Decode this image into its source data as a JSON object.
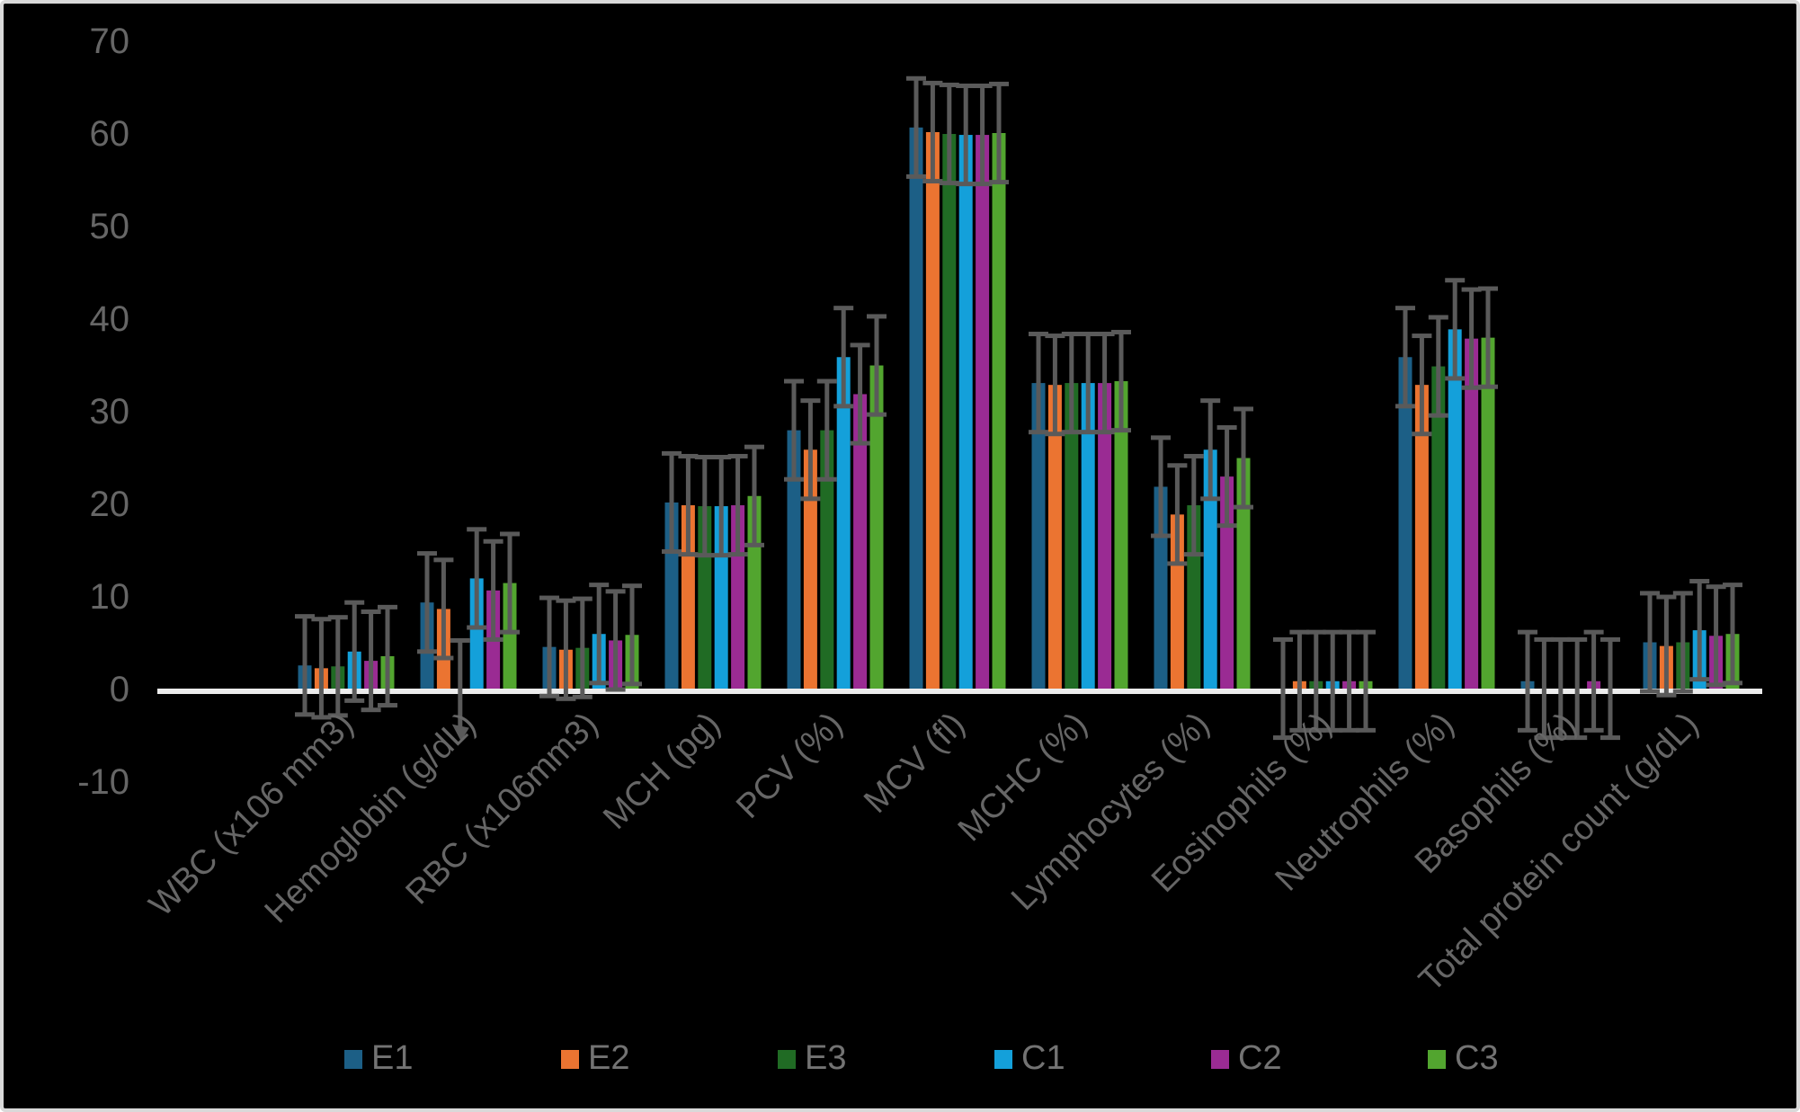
{
  "frame": {
    "background": "#000000",
    "border_color": "#D9D9D9"
  },
  "chart_data": {
    "type": "bar",
    "title": "",
    "xlabel": "",
    "ylabel": "",
    "background": "#000000",
    "grid": false,
    "legend_position": "bottom",
    "axis_text_color": "#666666",
    "legend_text_color": "#737373",
    "axis_line_color": "#ECECEC",
    "ylim": [
      -10,
      70
    ],
    "yticks": [
      70,
      60,
      50,
      40,
      30,
      20,
      10,
      0,
      -10
    ],
    "categories": [
      "WBC (x106 mm3)",
      "Hemoglobin (g/dL)",
      "RBC (x106mm3)",
      "MCH (pg)",
      "PCV (%)",
      "MCV (fl)",
      "MCHC (%)",
      "Lymphocytes (%)",
      "Eosinophils (%)",
      "Neutrophils (%)",
      "Basophils (%)",
      "Total protein count (g/dL)"
    ],
    "series": [
      {
        "name": "E1",
        "color": "#1C5F86",
        "values": [
          2.5,
          9.3,
          4.5,
          20.1,
          27.9,
          60.6,
          33.0,
          21.8,
          0,
          35.8,
          0.8,
          5.0
        ]
      },
      {
        "name": "E2",
        "color": "#EB7431",
        "values": [
          2.2,
          8.6,
          4.2,
          19.8,
          25.8,
          60.1,
          32.8,
          18.8,
          0.8,
          32.8,
          0,
          4.6
        ]
      },
      {
        "name": "E3",
        "color": "#206B24",
        "values": [
          2.4,
          0,
          4.4,
          19.7,
          27.9,
          59.9,
          33.0,
          19.8,
          0.8,
          34.8,
          0,
          5.0
        ]
      },
      {
        "name": "C1",
        "color": "#14A0DA",
        "values": [
          4.0,
          11.9,
          5.9,
          19.7,
          35.8,
          59.8,
          33.0,
          25.8,
          0.8,
          38.8,
          0,
          6.3
        ]
      },
      {
        "name": "C2",
        "color": "#9A2B93",
        "values": [
          3.0,
          10.6,
          5.2,
          19.8,
          31.8,
          59.8,
          33.0,
          22.9,
          0.8,
          37.8,
          0.8,
          5.7
        ]
      },
      {
        "name": "C3",
        "color": "#52A52F",
        "values": [
          3.5,
          11.4,
          5.8,
          20.8,
          34.9,
          60.0,
          33.2,
          24.9,
          0.8,
          37.9,
          0,
          5.9
        ]
      }
    ],
    "error_bar": {
      "value": 5.3,
      "color": "#5A5A5A"
    },
    "annotations": [
      {
        "type": "down-arrow-error-bar",
        "category_index": 1,
        "series_index": 2,
        "from": 5.2,
        "to": -5.5,
        "note": "error line with arrowhead pointing at Hemoglobin axis label; no bar drawn"
      }
    ]
  }
}
